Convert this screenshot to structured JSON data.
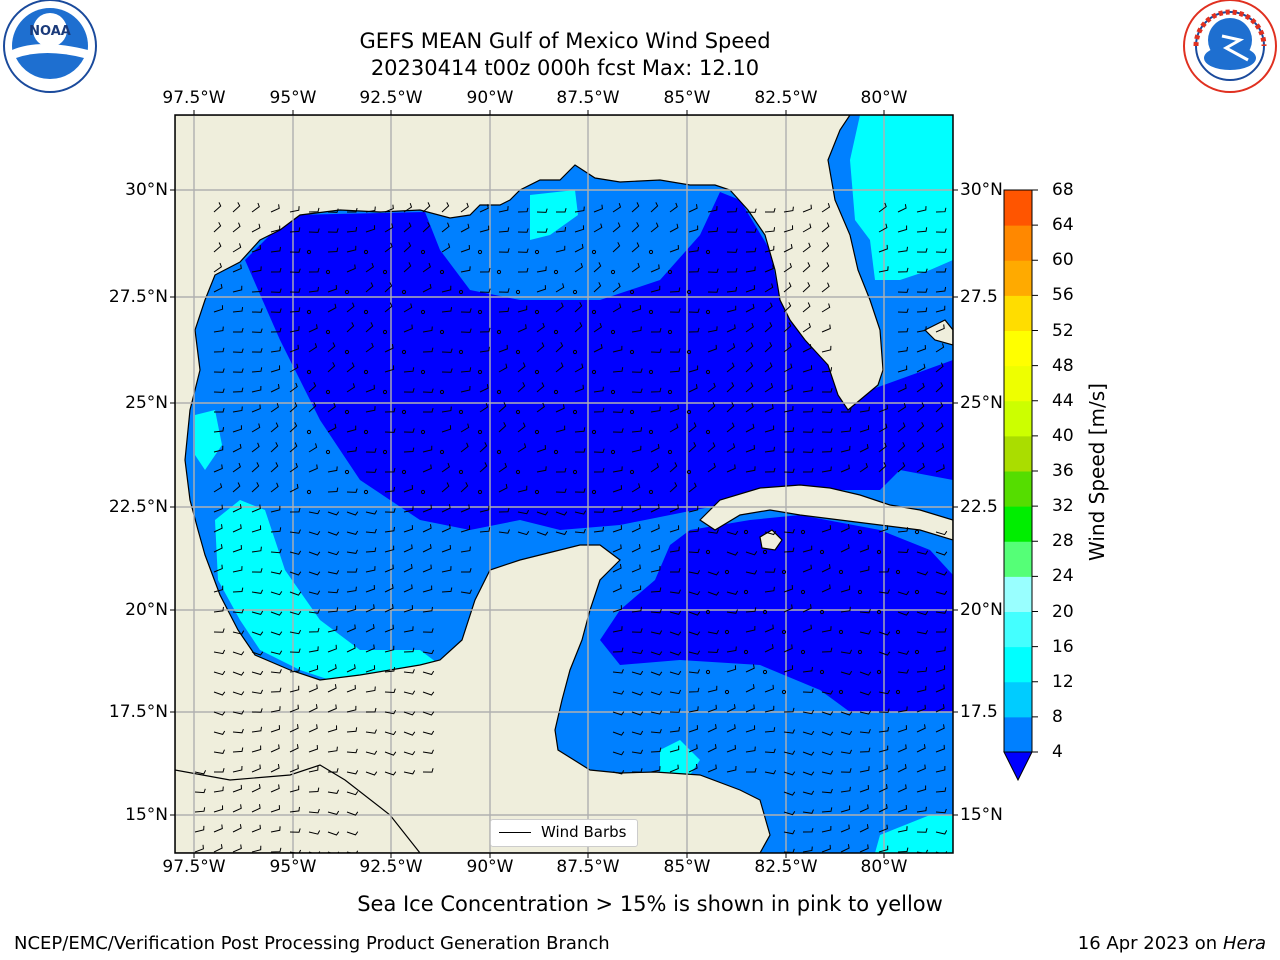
{
  "title_line1": "GEFS MEAN Gulf of Mexico Wind Speed",
  "title_line2": "20230414 t00z 000h fcst   Max: 12.10",
  "lon_labels": [
    "97.5°W",
    "95°W",
    "92.5°W",
    "90°W",
    "87.5°W",
    "85°W",
    "82.5°W",
    "80°W"
  ],
  "lat_labels_left": [
    "30°N",
    "27.5°N",
    "25°N",
    "22.5°N",
    "20°N",
    "17.5°N",
    "15°N"
  ],
  "lat_labels_right": [
    "30°N",
    "27.5",
    "25°N",
    "22.5",
    "20°N",
    "17.5",
    "15°N"
  ],
  "colorbar": {
    "title": "Wind Speed [m/s]",
    "ticks": [
      "4",
      "8",
      "12",
      "16",
      "20",
      "24",
      "28",
      "32",
      "36",
      "40",
      "44",
      "48",
      "52",
      "56",
      "60",
      "64",
      "68"
    ],
    "colors": [
      "#0080ff",
      "#00ccff",
      "#00ffff",
      "#44ffff",
      "#99ffff",
      "#55ff77",
      "#00ee00",
      "#55dd00",
      "#aadd00",
      "#ccff00",
      "#eeff00",
      "#ffff00",
      "#ffdd00",
      "#ffaa00",
      "#ff8800",
      "#ff5500",
      "#ff2200",
      "#ff0000"
    ],
    "under_color": "#0000ff"
  },
  "legend_label": "Wind Barbs",
  "sea_ice_note": "Sea Ice Concentration > 15% is shown in pink to yellow",
  "footer_left": "NCEP/EMC/Verification Post Processing Product Generation Branch",
  "footer_date": "16 Apr 2023 on",
  "footer_machine": "Hera",
  "logos": {
    "left": "NOAA",
    "right": "NATIONAL WEATHER SERVICE"
  },
  "colors": {
    "land": "#efeedc",
    "grid": "#b0b0b0",
    "speed_lt4": "#0000ff",
    "speed_4_8": "#0080ff",
    "speed_8_12": "#00ffff"
  }
}
